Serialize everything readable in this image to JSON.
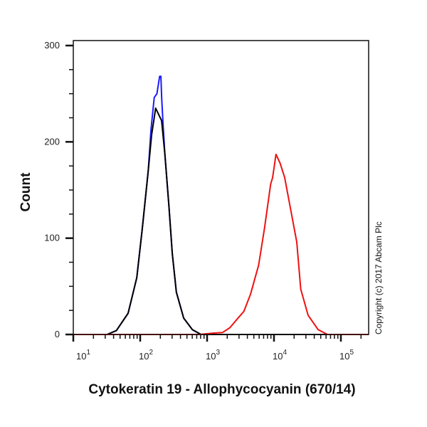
{
  "chart_data": {
    "type": "line",
    "title": "",
    "xlabel": "Cytokeratin 19 - Allophycocyanin (670/14)",
    "ylabel": "Count",
    "x_scale": "log",
    "xlim": [
      10,
      260000
    ],
    "ylim": [
      0,
      300
    ],
    "x_ticks": [
      {
        "base": "10",
        "exp": "1",
        "value": 10
      },
      {
        "base": "10",
        "exp": "2",
        "value": 100
      },
      {
        "base": "10",
        "exp": "3",
        "value": 1000
      },
      {
        "base": "10",
        "exp": "4",
        "value": 10000
      },
      {
        "base": "10",
        "exp": "5",
        "value": 100000
      }
    ],
    "y_ticks": [
      "0",
      "100",
      "200",
      "300"
    ],
    "grid": false,
    "annotation": "Copyright (c) 2017 Abcam Plc",
    "series": [
      {
        "color": "#1a1aff",
        "x": [
          10,
          32,
          44,
          66,
          89,
          107,
          132,
          145,
          162,
          178,
          195,
          204,
          209,
          219,
          234,
          269,
          302,
          347,
          447,
          603,
          813,
          260000
        ],
        "y": [
          0,
          0,
          4,
          22,
          59,
          109,
          170,
          213,
          246,
          250,
          268,
          268,
          247,
          220,
          187,
          133,
          84,
          44,
          17,
          5,
          0,
          0
        ]
      },
      {
        "color": "#000000",
        "x": [
          10,
          32,
          44,
          66,
          89,
          107,
          132,
          148,
          170,
          209,
          234,
          269,
          302,
          347,
          447,
          603,
          813,
          260000
        ],
        "y": [
          0,
          0,
          4,
          22,
          59,
          109,
          170,
          207,
          235,
          222,
          187,
          133,
          84,
          44,
          17,
          5,
          0,
          0
        ]
      },
      {
        "color": "#ee1111",
        "x": [
          10,
          759,
          1259,
          1698,
          2188,
          2818,
          3548,
          4467,
          5888,
          7244,
          8913,
          9550,
          10715,
          12303,
          14454,
          17378,
          21878,
          25119,
          32359,
          45709,
          63096,
          260000
        ],
        "y": [
          0,
          0,
          1.5,
          2,
          7,
          16,
          24,
          42,
          72,
          111,
          156,
          163,
          187,
          178,
          163,
          133,
          96,
          47,
          20,
          5,
          0,
          0
        ]
      }
    ]
  }
}
